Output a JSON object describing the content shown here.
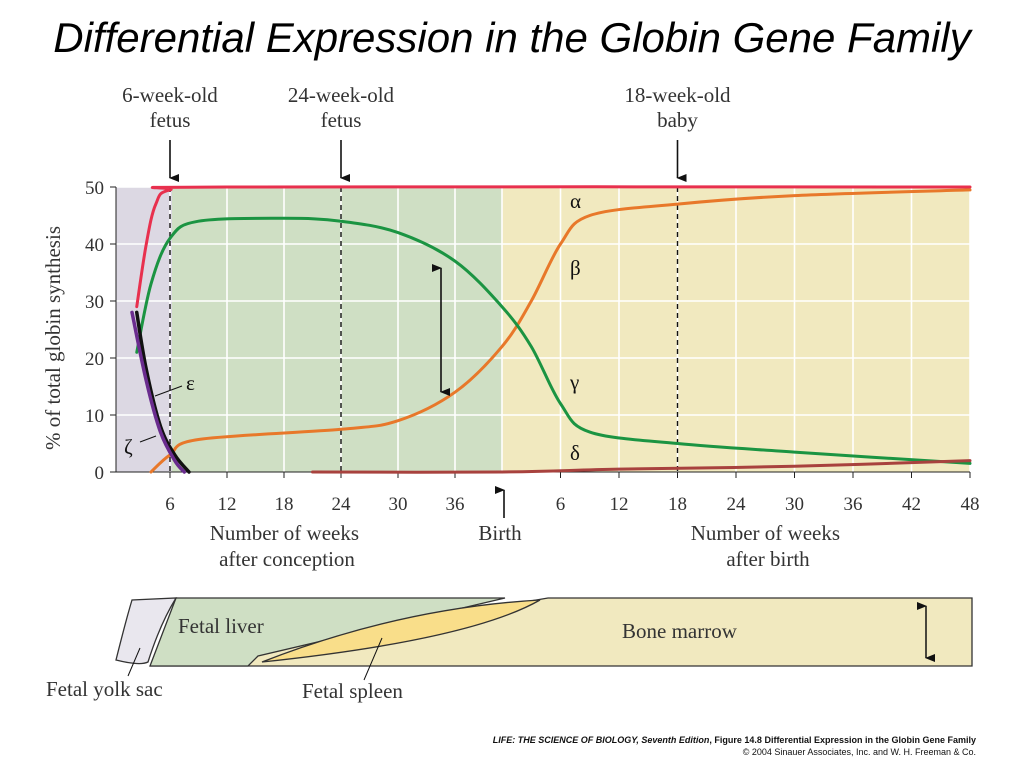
{
  "title": "Differential Expression in the Globin Gene Family",
  "chart_data": {
    "type": "line",
    "ylabel": "% of total globin synthesis",
    "ylim": [
      0,
      50
    ],
    "yticks": [
      0,
      10,
      20,
      30,
      40,
      50
    ],
    "grid": true,
    "x_before_birth": {
      "label_lines": [
        "Number of weeks",
        "after conception"
      ],
      "ticks": [
        6,
        12,
        18,
        24,
        30,
        36
      ]
    },
    "x_after_birth": {
      "label_lines": [
        "Number of weeks",
        "after birth"
      ],
      "ticks": [
        6,
        12,
        18,
        24,
        30,
        36,
        42,
        48
      ]
    },
    "birth_label": "Birth",
    "stage_markers": [
      {
        "lines": [
          "6-week-old",
          "fetus"
        ],
        "period": "conception",
        "week": 6
      },
      {
        "lines": [
          "24-week-old",
          "fetus"
        ],
        "period": "conception",
        "week": 24
      },
      {
        "lines": [
          "18-week-old",
          "baby"
        ],
        "period": "birth",
        "week": 18
      }
    ],
    "series": [
      {
        "name": "α",
        "color": "#e8304e",
        "points": [
          {
            "period": "conception",
            "week": 2.5,
            "y": 29
          },
          {
            "period": "conception",
            "week": 3.5,
            "y": 40
          },
          {
            "period": "conception",
            "week": 4.5,
            "y": 47
          },
          {
            "period": "conception",
            "week": 6,
            "y": 49.5
          },
          {
            "period": "conception",
            "week": 12,
            "y": 50
          },
          {
            "period": "birth",
            "week": 48,
            "y": 50
          }
        ]
      },
      {
        "name": "β",
        "color": "#e8782a",
        "points": [
          {
            "period": "conception",
            "week": 4,
            "y": 0
          },
          {
            "period": "conception",
            "week": 6,
            "y": 3
          },
          {
            "period": "conception",
            "week": 9,
            "y": 5.7
          },
          {
            "period": "conception",
            "week": 24,
            "y": 7.5
          },
          {
            "period": "conception",
            "week": 30,
            "y": 9
          },
          {
            "period": "conception",
            "week": 36,
            "y": 14
          },
          {
            "period": "birth",
            "week": 0,
            "y": 22
          },
          {
            "period": "birth",
            "week": 3,
            "y": 30
          },
          {
            "period": "birth",
            "week": 6,
            "y": 40
          },
          {
            "period": "birth",
            "week": 9,
            "y": 45
          },
          {
            "period": "birth",
            "week": 18,
            "y": 47
          },
          {
            "period": "birth",
            "week": 30,
            "y": 48.5
          },
          {
            "period": "birth",
            "week": 48,
            "y": 49.5
          }
        ]
      },
      {
        "name": "γ",
        "color": "#1b9442",
        "points": [
          {
            "period": "conception",
            "week": 2.5,
            "y": 21
          },
          {
            "period": "conception",
            "week": 4,
            "y": 33
          },
          {
            "period": "conception",
            "week": 6,
            "y": 41
          },
          {
            "period": "conception",
            "week": 9,
            "y": 44
          },
          {
            "period": "conception",
            "week": 18,
            "y": 44.5
          },
          {
            "period": "conception",
            "week": 24,
            "y": 44
          },
          {
            "period": "conception",
            "week": 30,
            "y": 42
          },
          {
            "period": "conception",
            "week": 36,
            "y": 37
          },
          {
            "period": "birth",
            "week": 0,
            "y": 29
          },
          {
            "period": "birth",
            "week": 3,
            "y": 22
          },
          {
            "period": "birth",
            "week": 6,
            "y": 12
          },
          {
            "period": "birth",
            "week": 9,
            "y": 7
          },
          {
            "period": "birth",
            "week": 18,
            "y": 5
          },
          {
            "period": "birth",
            "week": 30,
            "y": 3.5
          },
          {
            "period": "birth",
            "week": 48,
            "y": 1.5
          }
        ]
      },
      {
        "name": "δ",
        "color": "#a8423e",
        "points": [
          {
            "period": "conception",
            "week": 21,
            "y": 0
          },
          {
            "period": "birth",
            "week": 0,
            "y": 0
          },
          {
            "period": "birth",
            "week": 12,
            "y": 0.5
          },
          {
            "period": "birth",
            "week": 30,
            "y": 1
          },
          {
            "period": "birth",
            "week": 48,
            "y": 2
          }
        ]
      },
      {
        "name": "ε",
        "color": "#111111",
        "points": [
          {
            "period": "conception",
            "week": 2.5,
            "y": 28
          },
          {
            "period": "conception",
            "week": 3.5,
            "y": 18
          },
          {
            "period": "conception",
            "week": 5,
            "y": 8
          },
          {
            "period": "conception",
            "week": 6.5,
            "y": 3
          },
          {
            "period": "conception",
            "week": 8,
            "y": 0
          }
        ]
      },
      {
        "name": "ζ",
        "color": "#6a2c8e",
        "points": [
          {
            "period": "conception",
            "week": 2,
            "y": 28
          },
          {
            "period": "conception",
            "week": 3.5,
            "y": 16
          },
          {
            "period": "conception",
            "week": 5,
            "y": 7
          },
          {
            "period": "conception",
            "week": 6.5,
            "y": 2
          },
          {
            "period": "conception",
            "week": 7.5,
            "y": 0
          }
        ]
      }
    ],
    "sites": {
      "yolk_sac": "Fetal yolk sac",
      "liver": "Fetal liver",
      "spleen": "Fetal spleen",
      "bone_marrow": "Bone marrow"
    }
  },
  "caption": {
    "line1_source": "LIFE: THE SCIENCE OF BIOLOGY, Seventh Edition",
    "line1_figure": ", Figure 14.8 Differential Expression in the Globin Gene Family",
    "line2": "© 2004 Sinauer Associates, Inc. and W. H. Freeman & Co."
  }
}
